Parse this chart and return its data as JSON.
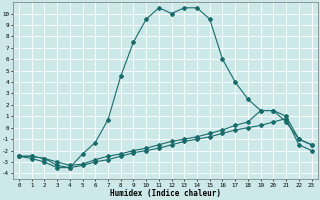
{
  "xlabel": "Humidex (Indice chaleur)",
  "bg_color": "#cce8e8",
  "grid_color": "#ffffff",
  "line_color": "#1a6b6b",
  "xlim": [
    -0.5,
    23.5
  ],
  "ylim": [
    -4.5,
    11.0
  ],
  "xticks": [
    0,
    1,
    2,
    3,
    4,
    5,
    6,
    7,
    8,
    9,
    10,
    11,
    12,
    13,
    14,
    15,
    16,
    17,
    18,
    19,
    20,
    21,
    22,
    23
  ],
  "yticks": [
    -4,
    -3,
    -2,
    -1,
    0,
    1,
    2,
    3,
    4,
    5,
    6,
    7,
    8,
    9,
    10
  ],
  "line1_x": [
    0,
    1,
    2,
    3,
    4,
    5,
    6,
    7,
    8,
    9,
    10,
    11,
    12,
    13,
    14,
    15,
    16,
    17,
    18,
    19,
    20,
    21,
    22,
    23
  ],
  "line1_y": [
    -2.5,
    -2.7,
    -3.0,
    -3.5,
    -3.5,
    -2.3,
    -1.3,
    0.7,
    4.5,
    7.5,
    9.5,
    10.5,
    10.0,
    10.5,
    10.5,
    9.5,
    6.0,
    4.0,
    2.5,
    1.5,
    1.5,
    0.5,
    -1.0,
    -1.5
  ],
  "line2_x": [
    0,
    1,
    2,
    3,
    4,
    5,
    6,
    7,
    8,
    9,
    10,
    11,
    12,
    13,
    14,
    15,
    16,
    17,
    18,
    19,
    20,
    21,
    22,
    23
  ],
  "line2_y": [
    -2.5,
    -2.5,
    -2.7,
    -3.0,
    -3.3,
    -3.2,
    -2.8,
    -2.5,
    -2.3,
    -2.0,
    -1.8,
    -1.5,
    -1.2,
    -1.0,
    -0.8,
    -0.5,
    -0.2,
    0.2,
    0.5,
    1.5,
    1.5,
    1.0,
    -1.0,
    -1.5
  ],
  "line3_x": [
    0,
    1,
    2,
    3,
    4,
    5,
    6,
    7,
    8,
    9,
    10,
    11,
    12,
    13,
    14,
    15,
    16,
    17,
    18,
    19,
    20,
    21,
    22,
    23
  ],
  "line3_y": [
    -2.5,
    -2.5,
    -2.7,
    -3.3,
    -3.5,
    -3.3,
    -3.0,
    -2.8,
    -2.5,
    -2.2,
    -2.0,
    -1.8,
    -1.5,
    -1.2,
    -1.0,
    -0.8,
    -0.5,
    -0.2,
    0.0,
    0.2,
    0.5,
    0.8,
    -1.5,
    -2.0
  ]
}
